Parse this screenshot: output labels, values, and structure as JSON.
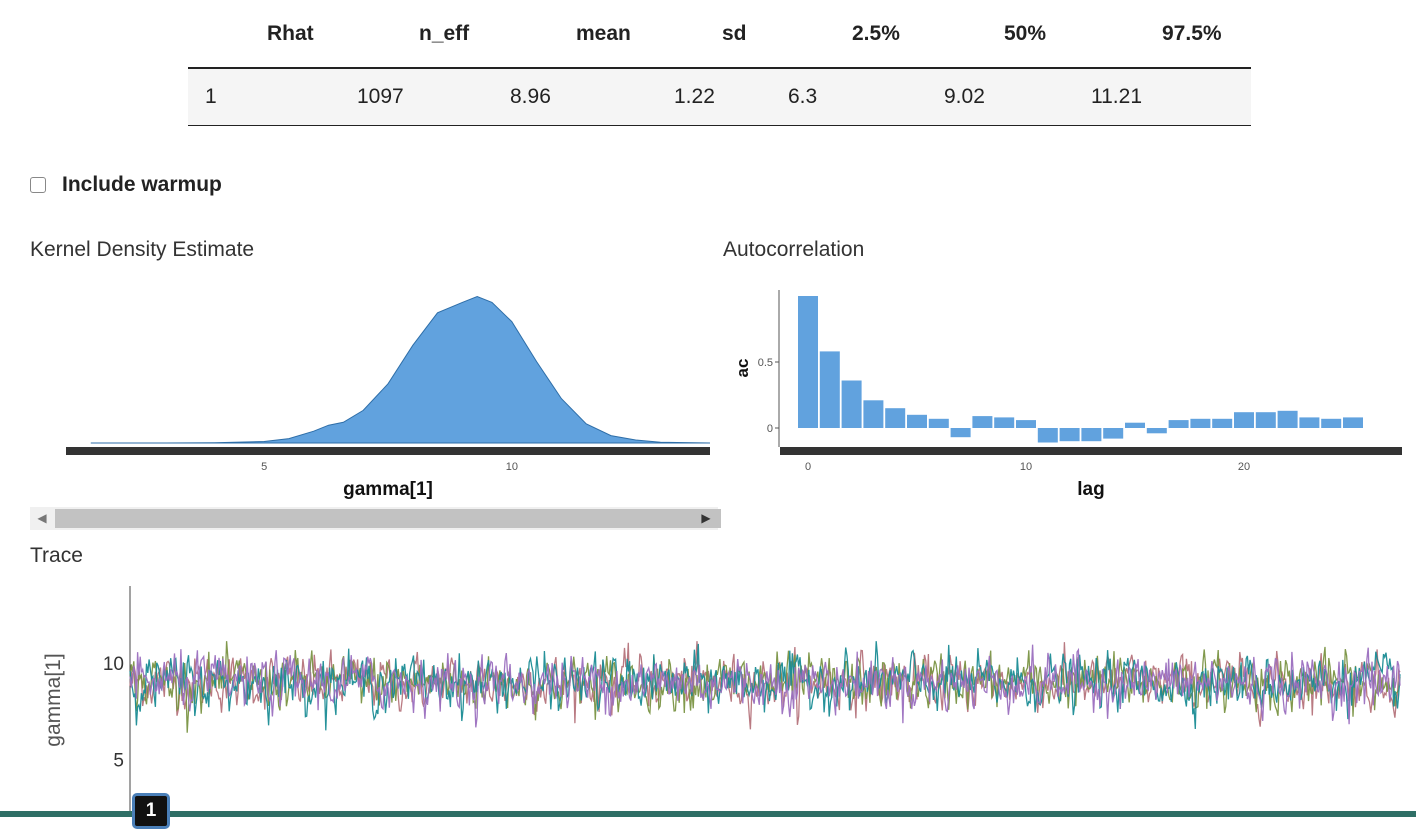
{
  "table": {
    "headers": [
      "Rhat",
      "n_eff",
      "mean",
      "sd",
      "2.5%",
      "50%",
      "97.5%"
    ],
    "row": [
      "1",
      "1097",
      "8.96",
      "1.22",
      "6.3",
      "9.02",
      "11.21"
    ]
  },
  "warmup": {
    "label": "Include warmup",
    "checked": false
  },
  "density": {
    "title": "Kernel Density Estimate",
    "chart_data": {
      "type": "area",
      "title": "",
      "xlabel": "gamma[1]",
      "ylabel": "",
      "x_ticks": [
        "5",
        "10"
      ],
      "xlim": [
        1,
        14
      ],
      "color": "#61a2de",
      "x": [
        1.5,
        3,
        4,
        5,
        5.5,
        6,
        6.3,
        6.6,
        7,
        7.5,
        8,
        8.5,
        9,
        9.3,
        9.6,
        10,
        10.5,
        11,
        11.5,
        12,
        12.5,
        13,
        14
      ],
      "y": [
        0,
        0,
        0.002,
        0.01,
        0.03,
        0.08,
        0.12,
        0.14,
        0.22,
        0.4,
        0.66,
        0.88,
        0.95,
        0.99,
        0.95,
        0.82,
        0.55,
        0.3,
        0.13,
        0.05,
        0.02,
        0.005,
        0
      ]
    }
  },
  "autocorr": {
    "title": "Autocorrelation",
    "chart_data": {
      "type": "bar",
      "title": "",
      "xlabel": "lag",
      "ylabel": "ac",
      "x_ticks": [
        "0",
        "10",
        "20"
      ],
      "y_ticks": [
        "0",
        "0.5"
      ],
      "ylim": [
        -0.18,
        1.05
      ],
      "color": "#61a2de",
      "categories": [
        0,
        1,
        2,
        3,
        4,
        5,
        6,
        7,
        8,
        9,
        10,
        11,
        12,
        13,
        14,
        15,
        16,
        17,
        18,
        19,
        20,
        21,
        22,
        23,
        24,
        25
      ],
      "values": [
        1.0,
        0.58,
        0.36,
        0.21,
        0.15,
        0.1,
        0.07,
        -0.07,
        0.09,
        0.08,
        0.06,
        -0.11,
        -0.1,
        -0.1,
        -0.08,
        0.04,
        -0.04,
        0.06,
        0.07,
        0.07,
        0.12,
        0.12,
        0.13,
        0.08,
        0.07,
        0.08
      ]
    }
  },
  "scroll": {
    "left_arrow": "◀",
    "right_arrow": "▶"
  },
  "trace": {
    "title": "Trace",
    "chart_data": {
      "type": "line",
      "title": "",
      "xlabel": "",
      "ylabel": "gamma[1]",
      "y_ticks": [
        "5",
        "10"
      ],
      "ylim": [
        2.0,
        14.0
      ],
      "series_colors": [
        "#b5737b",
        "#7a9343",
        "#1a8c95",
        "#9b6fbf"
      ],
      "series_mean": 9.0,
      "series_sd": 1.0,
      "series_length": 1000
    }
  },
  "chain_badge": "1"
}
